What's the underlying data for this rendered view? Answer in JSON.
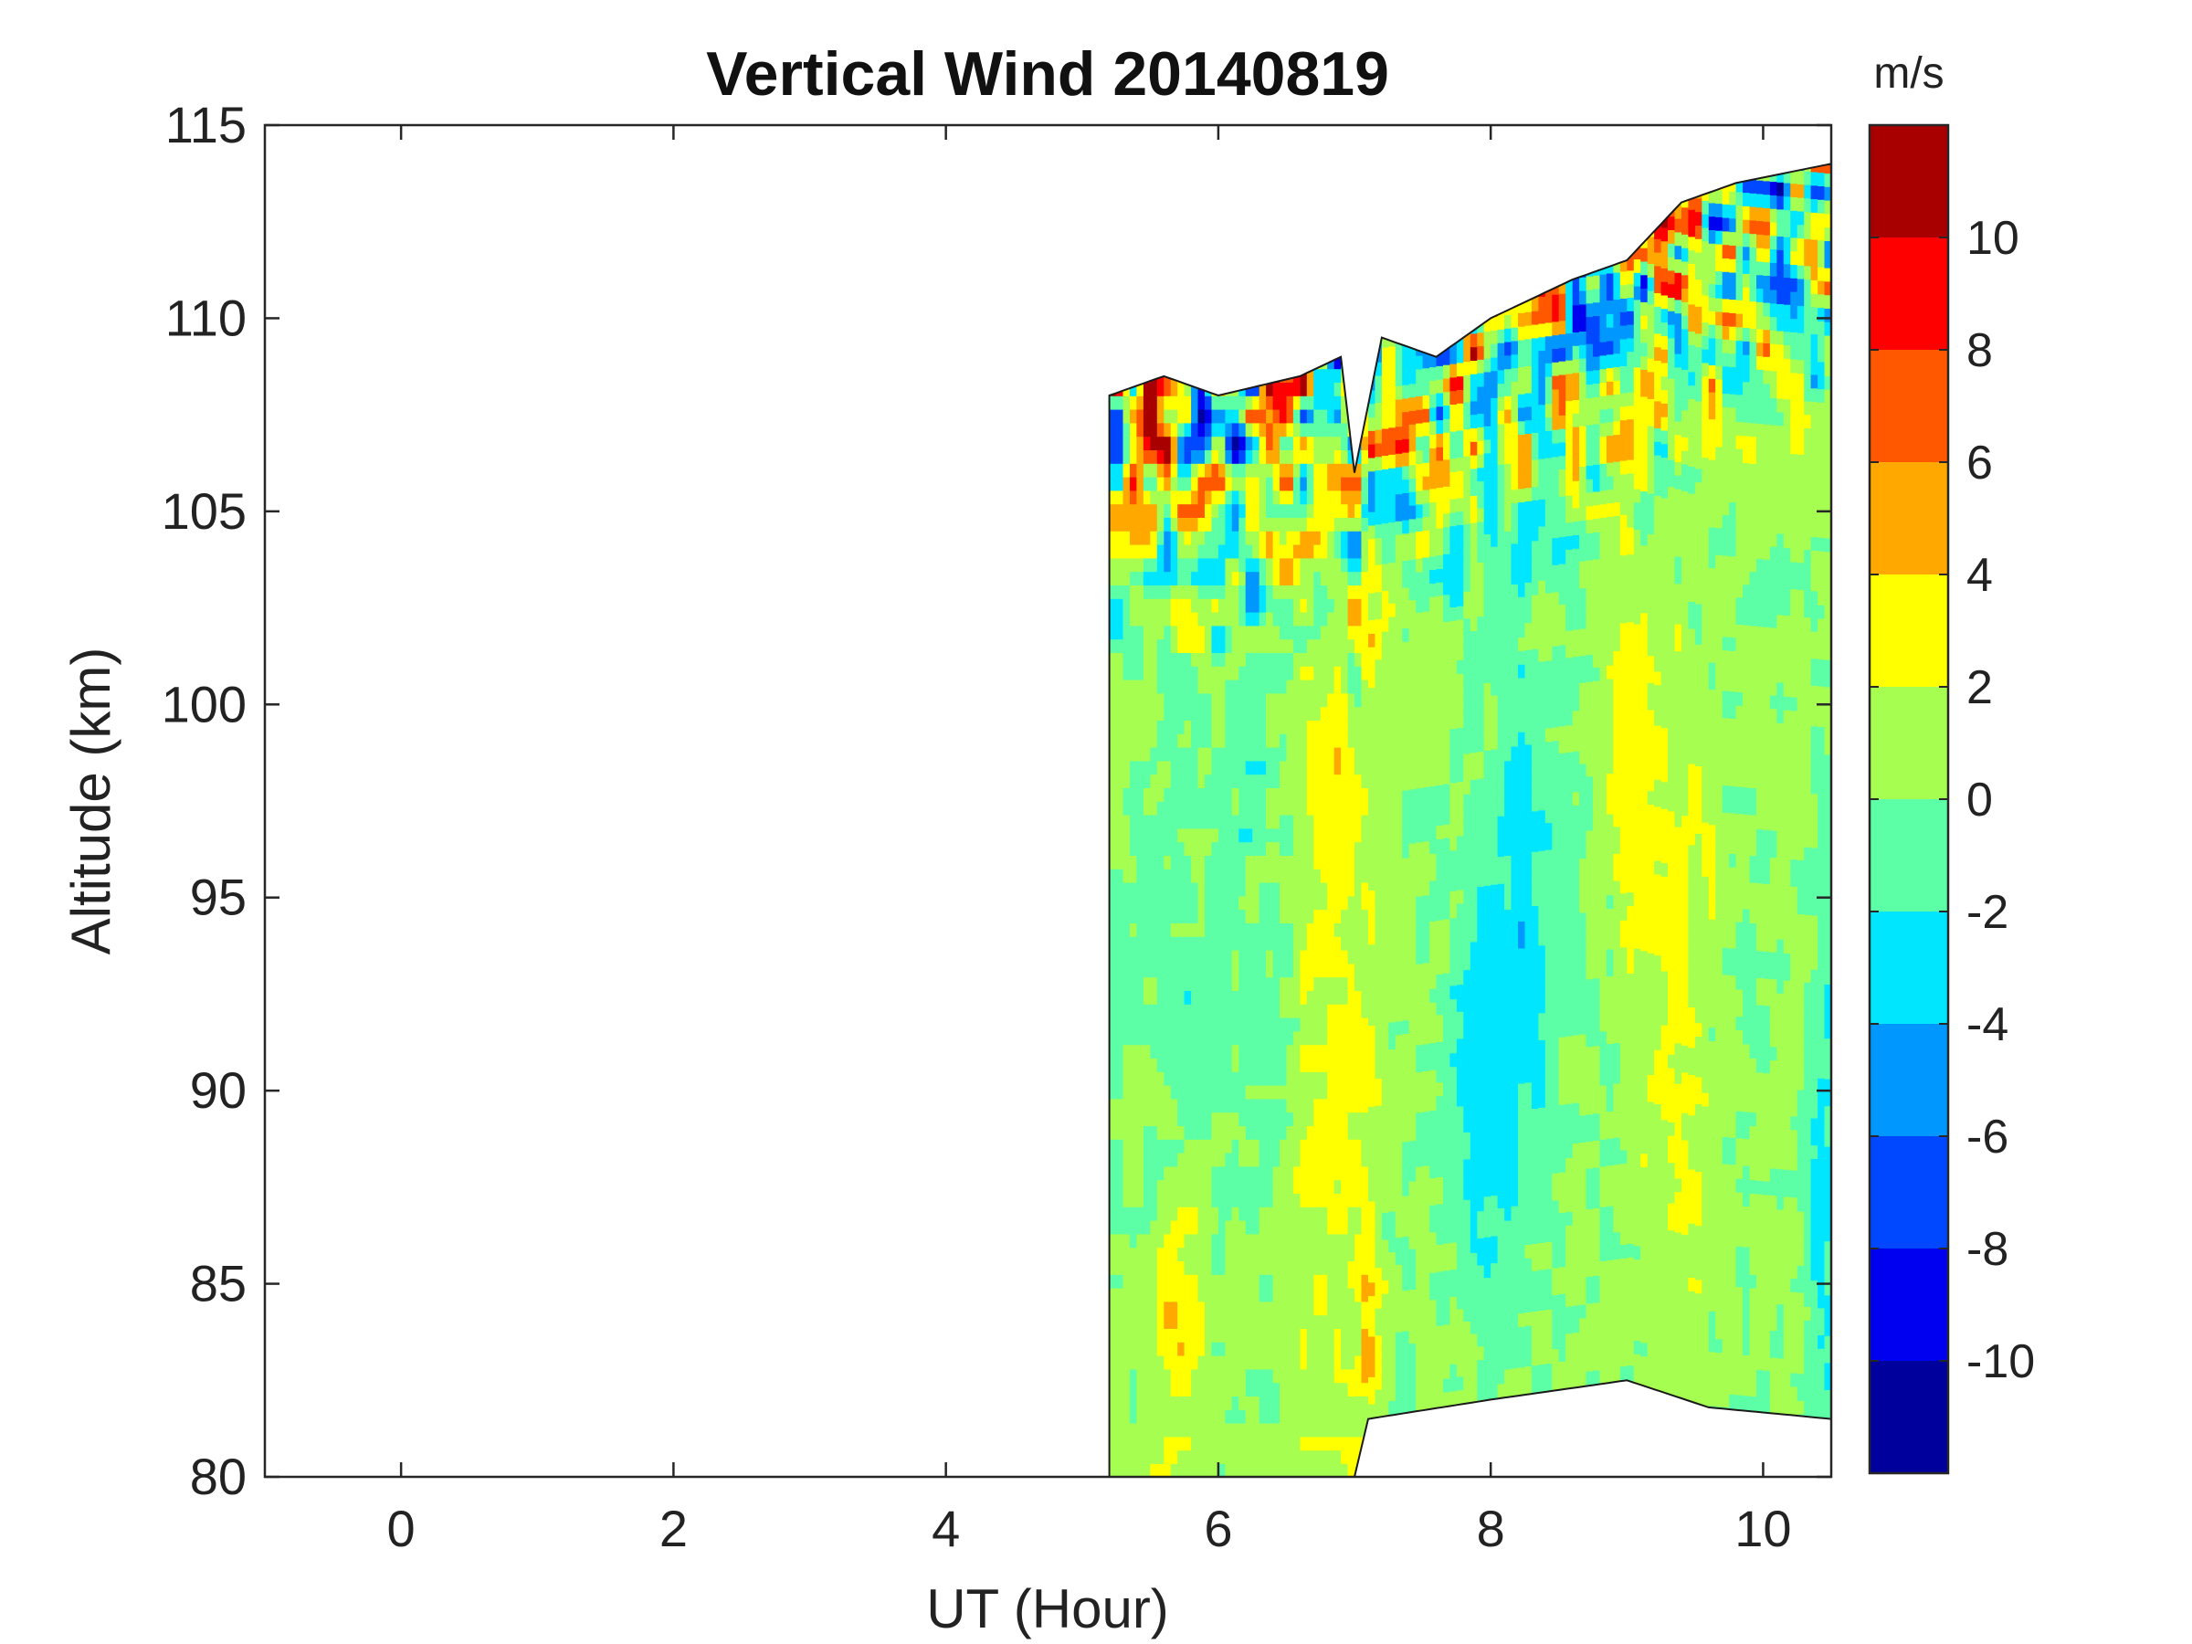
{
  "chart_data": {
    "type": "heatmap",
    "subtype": "filled-contour",
    "title": "Vertical Wind 20140819",
    "xlabel": "UT (Hour)",
    "ylabel": "Altitude (km)",
    "xlim": [
      -1,
      10.5
    ],
    "ylim": [
      80,
      115
    ],
    "xticks": [
      0,
      2,
      4,
      6,
      8,
      10
    ],
    "yticks": [
      80,
      85,
      90,
      95,
      100,
      105,
      110,
      115
    ],
    "colorbar": {
      "unit": "m/s",
      "range": [
        -12,
        12
      ],
      "step": 2,
      "ticks": [
        -10,
        -8,
        -6,
        -4,
        -2,
        0,
        2,
        4,
        6,
        8,
        10
      ],
      "colors": [
        "#00009c",
        "#0000f0",
        "#0048ff",
        "#0098ff",
        "#00e6ff",
        "#5cffa6",
        "#a6ff50",
        "#ffff00",
        "#ffa800",
        "#ff5800",
        "#ff0000",
        "#a80000"
      ]
    },
    "data_coverage": {
      "ut_start": 5.2,
      "ut_end": 10.5,
      "top_edge": [
        [
          5.2,
          108
        ],
        [
          5.6,
          108.5
        ],
        [
          6.0,
          108
        ],
        [
          6.6,
          108.5
        ],
        [
          6.9,
          109
        ],
        [
          7.0,
          106
        ],
        [
          7.2,
          109.5
        ],
        [
          7.6,
          109
        ],
        [
          8.0,
          110
        ],
        [
          8.6,
          111
        ],
        [
          9.0,
          111.5
        ],
        [
          9.4,
          113
        ],
        [
          9.8,
          113.5
        ],
        [
          10.5,
          114
        ]
      ],
      "bottom_edge": [
        [
          5.2,
          80
        ],
        [
          7.0,
          80
        ],
        [
          7.1,
          81.5
        ],
        [
          8.0,
          82
        ],
        [
          9.0,
          82.5
        ],
        [
          9.6,
          81.8
        ],
        [
          10.5,
          81.5
        ]
      ]
    },
    "wind_field_summary": [
      {
        "region": "85-100 km, 6.5-7.2 UT",
        "value_range": [
          2,
          4
        ],
        "note": "vertical band of upward wind"
      },
      {
        "region": "83-87 km, near 5.7 UT",
        "value_range": [
          4,
          6
        ],
        "note": "local maximum"
      },
      {
        "region": "90-98 km, 8.0-8.8 UT",
        "value_range": [
          -4,
          -2
        ],
        "note": "downward wind band"
      },
      {
        "region": "105-114 km, 7.5-10.5 UT",
        "value_range": [
          -10,
          10
        ],
        "note": "strong small-scale fluctuations"
      }
    ]
  }
}
